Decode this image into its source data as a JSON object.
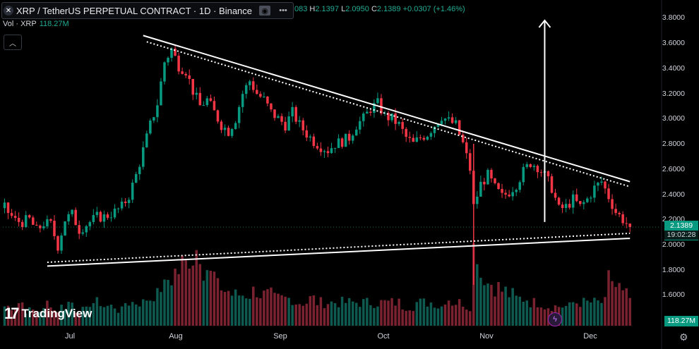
{
  "header": {
    "symbol_icon": "xrp-logo-icon",
    "title": "XRP / TetherUS PERPETUAL CONTRACT · 1D · Binance",
    "ohlc": {
      "o_label": "",
      "o_value": "083",
      "h_label": "H",
      "h_value": "2.1397",
      "l_label": "L",
      "l_value": "2.0950",
      "c_label": "C",
      "c_value": "2.1389",
      "change": "+0.0307 (+1.46%)"
    }
  },
  "volume": {
    "label": "Vol · XRP",
    "value": "118.27M"
  },
  "price_axis": {
    "ticks": [
      "3.8000",
      "3.6000",
      "3.4000",
      "3.2000",
      "3.0000",
      "2.8000",
      "2.6000",
      "2.4000",
      "2.2000",
      "2.0000",
      "1.8000",
      "1.6000"
    ],
    "last_price": "2.1389",
    "countdown": "19:02:28",
    "volume_badge": "118.27M"
  },
  "time_axis": {
    "labels": [
      "Jul",
      "Aug",
      "Sep",
      "Oct",
      "Nov",
      "Dec"
    ]
  },
  "branding": {
    "logo_text": "TradingView"
  },
  "colors": {
    "up": "#089981",
    "down": "#f23645",
    "up_vol": "#0f5a50",
    "down_vol": "#7a2230",
    "background": "#000000"
  },
  "chart_data": {
    "type": "candlestick",
    "symbol": "XRP / TetherUS PERPETUAL CONTRACT",
    "interval": "1D",
    "ylim": [
      1.45,
      3.9
    ],
    "x_labels": [
      "Jul",
      "Aug",
      "Sep",
      "Oct",
      "Nov",
      "Dec"
    ],
    "y_ticks": [
      3.8,
      3.6,
      3.4,
      3.2,
      3.0,
      2.8,
      2.6,
      2.4,
      2.2,
      2.0,
      1.8,
      1.6
    ],
    "close_path": [
      [
        0,
        2.29
      ],
      [
        3,
        2.19
      ],
      [
        5,
        2.18
      ],
      [
        7,
        2.2
      ],
      [
        9,
        2.11
      ],
      [
        11,
        2.17
      ],
      [
        13,
        2.16
      ],
      [
        15,
        1.99
      ],
      [
        17,
        2.2
      ],
      [
        19,
        2.24
      ],
      [
        21,
        2.12
      ],
      [
        23,
        2.16
      ],
      [
        26,
        2.22
      ],
      [
        28,
        2.22
      ],
      [
        31,
        2.26
      ],
      [
        33,
        2.3
      ],
      [
        35,
        2.39
      ],
      [
        37,
        2.55
      ],
      [
        39,
        2.75
      ],
      [
        41,
        2.95
      ],
      [
        43,
        3.12
      ],
      [
        45,
        3.45
      ],
      [
        47,
        3.55
      ],
      [
        49,
        3.42
      ],
      [
        51,
        3.38
      ],
      [
        53,
        3.22
      ],
      [
        55,
        3.1
      ],
      [
        57,
        3.15
      ],
      [
        59,
        3.05
      ],
      [
        61,
        2.95
      ],
      [
        63,
        2.9
      ],
      [
        65,
        3.0
      ],
      [
        67,
        3.2
      ],
      [
        69,
        3.3
      ],
      [
        71,
        3.2
      ],
      [
        73,
        3.15
      ],
      [
        75,
        3.05
      ],
      [
        77,
        3.0
      ],
      [
        79,
        2.95
      ],
      [
        81,
        3.05
      ],
      [
        83,
        2.95
      ],
      [
        85,
        2.88
      ],
      [
        87,
        2.82
      ],
      [
        89,
        2.78
      ],
      [
        91,
        2.75
      ],
      [
        93,
        2.8
      ],
      [
        95,
        2.82
      ],
      [
        97,
        2.85
      ],
      [
        99,
        2.95
      ],
      [
        101,
        3.0
      ],
      [
        103,
        3.08
      ],
      [
        105,
        3.12
      ],
      [
        107,
        3.02
      ],
      [
        109,
        3.0
      ],
      [
        111,
        2.95
      ],
      [
        113,
        2.85
      ],
      [
        115,
        2.8
      ],
      [
        117,
        2.85
      ],
      [
        119,
        2.88
      ],
      [
        121,
        2.95
      ],
      [
        123,
        3.02
      ],
      [
        125,
        2.98
      ],
      [
        127,
        2.95
      ],
      [
        129,
        2.8
      ],
      [
        131,
        2.6
      ],
      [
        132,
        2.3
      ],
      [
        134,
        2.48
      ],
      [
        136,
        2.55
      ],
      [
        138,
        2.45
      ],
      [
        140,
        2.38
      ],
      [
        142,
        2.42
      ],
      [
        144,
        2.48
      ],
      [
        146,
        2.58
      ],
      [
        148,
        2.65
      ],
      [
        150,
        2.62
      ],
      [
        152,
        2.55
      ],
      [
        154,
        2.45
      ],
      [
        156,
        2.28
      ],
      [
        158,
        2.3
      ],
      [
        160,
        2.36
      ],
      [
        162,
        2.3
      ],
      [
        164,
        2.36
      ],
      [
        166,
        2.45
      ],
      [
        168,
        2.5
      ],
      [
        170,
        2.38
      ],
      [
        172,
        2.26
      ],
      [
        174,
        2.2
      ],
      [
        176,
        2.14
      ]
    ],
    "volume_relative": [
      0.25,
      0.25,
      0.3,
      0.2,
      0.2,
      0.2,
      0.3,
      0.2,
      0.25,
      0.3,
      0.2,
      0.2,
      0.3,
      0.3,
      0.25,
      0.25,
      0.2,
      0.3,
      0.3,
      0.3,
      0.35,
      0.4,
      0.5,
      0.6,
      0.7,
      0.8,
      0.9,
      1.0,
      0.75,
      0.65,
      0.5,
      0.45,
      0.4,
      0.4,
      0.4,
      0.45,
      0.4,
      0.4,
      0.35,
      0.35,
      0.35,
      0.3,
      0.3,
      0.35,
      0.3,
      0.3,
      0.3,
      0.3,
      0.3,
      0.3,
      0.3,
      0.3,
      0.3,
      0.3,
      0.3,
      0.3,
      0.25,
      0.25,
      0.3,
      0.3,
      0.3,
      0.25,
      0.35,
      0.3,
      0.3,
      0.25,
      1.0,
      0.65,
      0.55,
      0.5,
      0.45,
      0.4,
      0.35,
      0.35,
      0.3,
      0.3,
      0.25,
      0.25,
      0.25,
      0.25,
      0.3,
      0.3,
      0.3,
      0.3,
      0.3,
      0.6,
      0.5,
      0.4,
      0.35,
      0.3
    ],
    "drawings": [
      {
        "kind": "descending-resistance",
        "from": [
          39,
          3.66
        ],
        "to": [
          176,
          2.5
        ]
      },
      {
        "kind": "descending-resistance-dotted",
        "from": [
          40,
          3.61
        ],
        "to": [
          176,
          2.46
        ]
      },
      {
        "kind": "ascending-support",
        "from": [
          12,
          1.83
        ],
        "to": [
          176,
          2.05
        ]
      },
      {
        "kind": "ascending-support-dotted",
        "from": [
          12,
          1.86
        ],
        "to": [
          176,
          2.09
        ]
      },
      {
        "kind": "target-arrow",
        "from": [
          152,
          2.18
        ],
        "to": [
          152,
          3.78
        ]
      }
    ],
    "last_price": 2.1389,
    "grid": false,
    "legend": "top-left"
  }
}
